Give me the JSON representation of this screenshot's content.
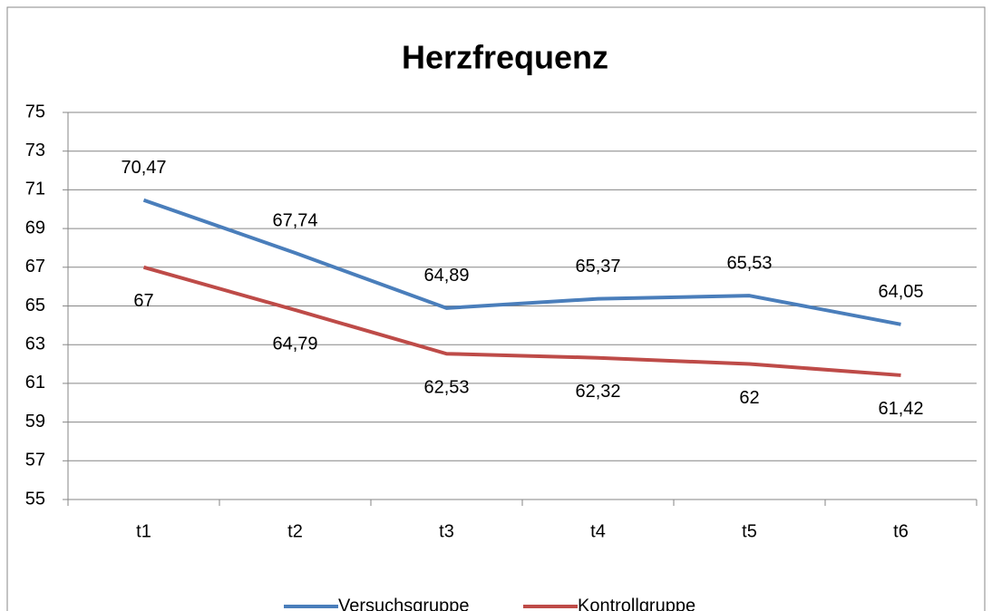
{
  "chart_data": {
    "type": "line",
    "title": "Herzfrequenz",
    "categories": [
      "t1",
      "t2",
      "t3",
      "t4",
      "t5",
      "t6"
    ],
    "series": [
      {
        "name": "Versuchsgruppe",
        "color": "#4a7ebb",
        "values": [
          70.47,
          67.74,
          64.89,
          65.37,
          65.53,
          64.05
        ],
        "value_labels": [
          "70,47",
          "67,74",
          "64,89",
          "65,37",
          "65,53",
          "64,05"
        ]
      },
      {
        "name": "Kontrollgruppe",
        "color": "#be4b48",
        "values": [
          67,
          64.79,
          62.53,
          62.32,
          62,
          61.42
        ],
        "value_labels": [
          "67",
          "64,79",
          "62,53",
          "62,32",
          "62",
          "61,42"
        ]
      }
    ],
    "ylim": [
      55,
      75
    ],
    "yticks": [
      55,
      57,
      59,
      61,
      63,
      65,
      67,
      69,
      71,
      73,
      75
    ],
    "grid": true,
    "legend": "bottom"
  }
}
